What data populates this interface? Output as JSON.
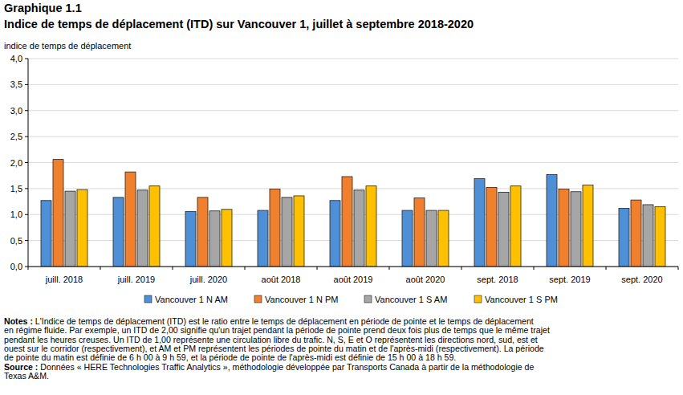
{
  "chart_data": {
    "type": "bar",
    "title": "Graphique 1.1",
    "subtitle": "Indice de temps de déplacement (ITD) sur Vancouver 1, juillet à septembre 2018-2020",
    "y_label": "indice de temps de déplacement",
    "categories": [
      "juill. 2018",
      "juill. 2019",
      "juill. 2020",
      "août 2018",
      "août 2019",
      "août 2020",
      "sept. 2018",
      "sept. 2019",
      "sept. 2020"
    ],
    "series": [
      {
        "name": "Vancouver 1 N AM",
        "color": "#4f8fd6",
        "values": [
          1.27,
          1.33,
          1.06,
          1.08,
          1.27,
          1.08,
          1.69,
          1.77,
          1.12
        ]
      },
      {
        "name": "Vancouver 1 N PM",
        "color": "#f07f2e",
        "values": [
          2.06,
          1.82,
          1.33,
          1.49,
          1.73,
          1.32,
          1.52,
          1.49,
          1.28
        ]
      },
      {
        "name": "Vancouver 1 S AM",
        "color": "#a6a6a6",
        "values": [
          1.45,
          1.47,
          1.07,
          1.33,
          1.47,
          1.08,
          1.43,
          1.44,
          1.19
        ]
      },
      {
        "name": "Vancouver 1 S PM",
        "color": "#ffc000",
        "values": [
          1.48,
          1.55,
          1.1,
          1.36,
          1.55,
          1.08,
          1.55,
          1.57,
          1.15
        ]
      }
    ],
    "ylim": [
      0,
      4
    ],
    "yticks": [
      {
        "value": 0,
        "label": "0,0"
      },
      {
        "value": 0.5,
        "label": "0,5"
      },
      {
        "value": 1,
        "label": "1,0"
      },
      {
        "value": 1.5,
        "label": "1,5"
      },
      {
        "value": 2,
        "label": "2,0"
      },
      {
        "value": 2.5,
        "label": "2,5"
      },
      {
        "value": 3,
        "label": "3,0"
      },
      {
        "value": 3.5,
        "label": "3,5"
      },
      {
        "value": 4,
        "label": "4,0"
      }
    ],
    "grid": true,
    "legend": "bottom",
    "notes": {
      "label": "Notes :",
      "lines": [
        " L'Indice de temps de déplacement (ITD) est le ratio  entre le temps de déplacement en période de pointe et le temps de déplacement",
        "en régime fluide. Par exemple, un ITD de 2,00 signifie qu'un trajet pendant la période de pointe prend deux fois plus de temps que le même trajet",
        "pendant les heures creuses. Un ITD de 1,00 représente une circulation libre du trafic. N, S, E et O représentent les directions nord, sud, est et",
        "ouest sur le corridor (respectivement), et AM et PM représentent les périodes de pointe du matin et de l'après-midi (respectivement). La période",
        "de pointe du matin est définie de 6 h 00 à 9 h 59, et la période de pointe de l'après-midi est définie de 15 h 00 à 18 h 59."
      ]
    },
    "source": {
      "label": "Source :",
      "lines": [
        " Données « HERE Technologies Traffic Analytics », méthodologie développée par Transports Canada à partir de la méthodologie de",
        "Texas A&M."
      ]
    }
  }
}
